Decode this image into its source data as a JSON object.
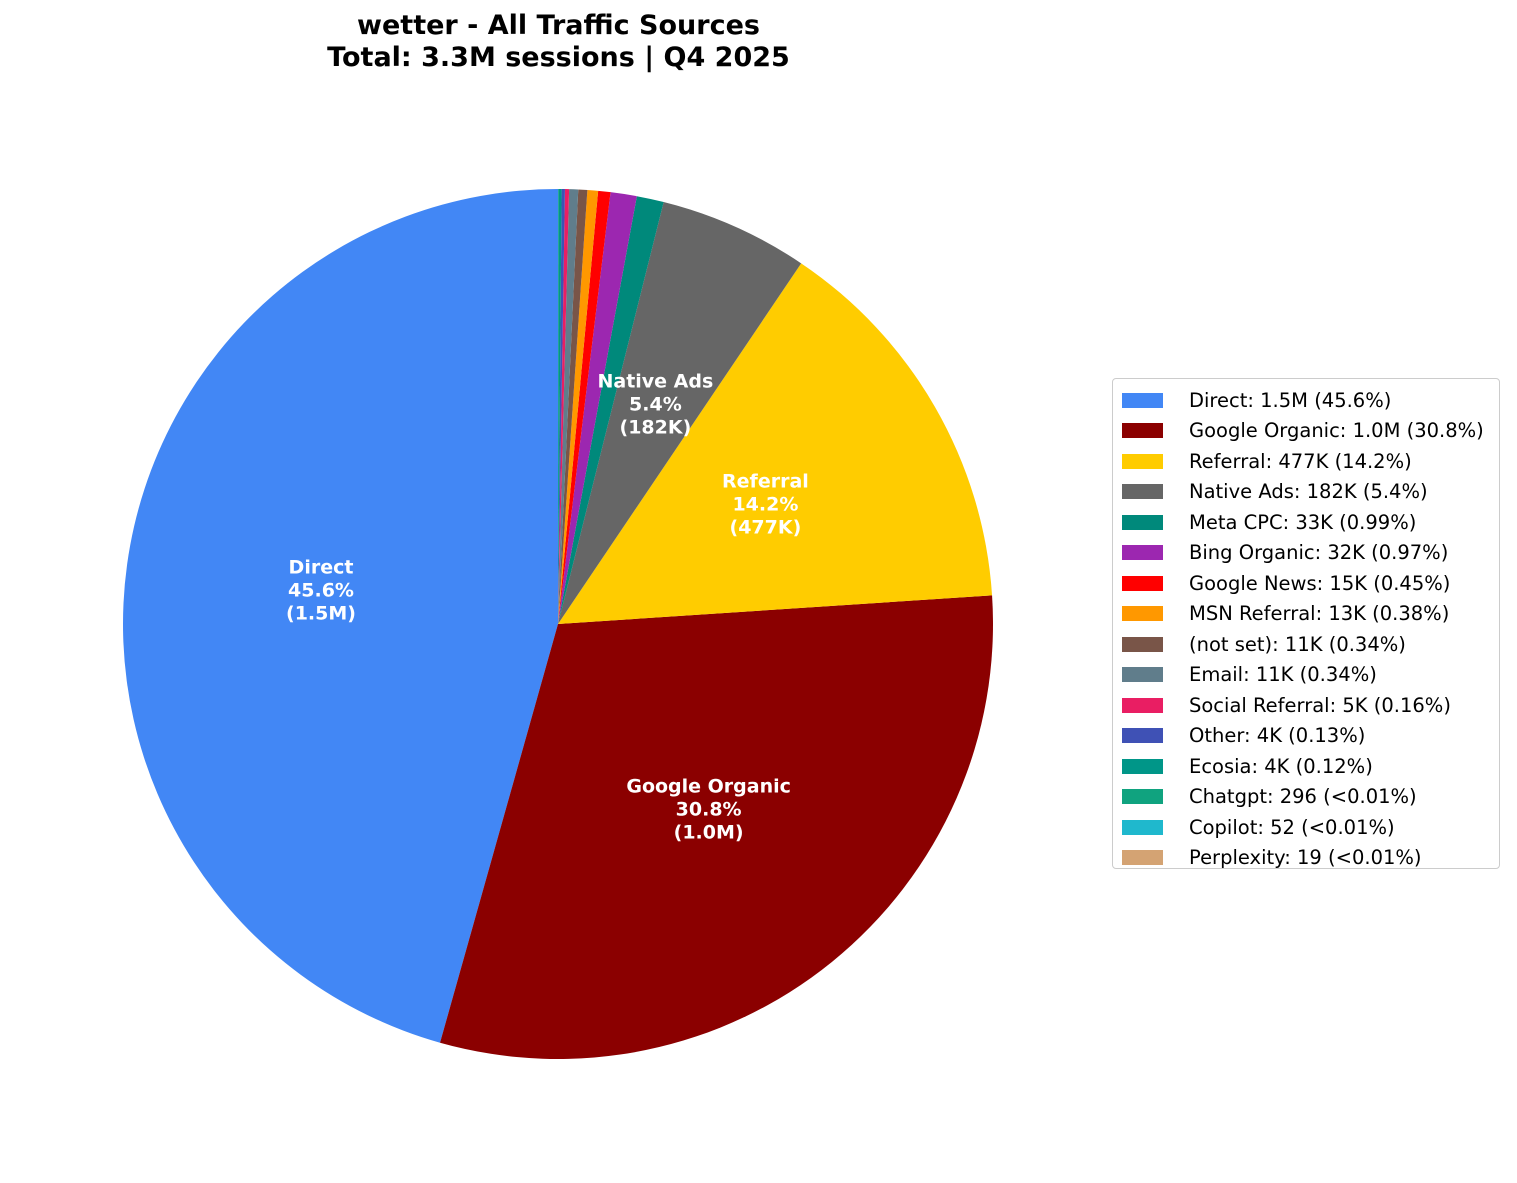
{
  "title": {
    "line1": "wetter - All Traffic Sources",
    "line2": "Total: 3.3M sessions | Q4 2025"
  },
  "chart_data": {
    "type": "pie",
    "title": "wetter - All Traffic Sources\nTotal: 3.3M sessions | Q4 2025",
    "total_sessions": "3.3M",
    "legend_position": "right",
    "slices": [
      {
        "label": "Direct",
        "value": 1500000,
        "value_label": "1.5M",
        "percent": 45.6,
        "pct_label": "45.6%",
        "color": "#4287f5",
        "legend": "Direct: 1.5M (45.6%)",
        "show_label": true
      },
      {
        "label": "Google Organic",
        "value": 1000000,
        "value_label": "1.0M",
        "percent": 30.8,
        "pct_label": "30.8%",
        "color": "#8b0000",
        "legend": "Google Organic: 1.0M (30.8%)",
        "show_label": true
      },
      {
        "label": "Referral",
        "value": 477000,
        "value_label": "477K",
        "percent": 14.2,
        "pct_label": "14.2%",
        "color": "#ffcc00",
        "legend": "Referral: 477K (14.2%)",
        "show_label": true
      },
      {
        "label": "Native Ads",
        "value": 182000,
        "value_label": "182K",
        "percent": 5.4,
        "pct_label": "5.4%",
        "color": "#666666",
        "legend": "Native Ads: 182K (5.4%)",
        "show_label": true
      },
      {
        "label": "Meta CPC",
        "value": 33000,
        "value_label": "33K",
        "percent": 0.99,
        "pct_label": "0.99%",
        "color": "#00897b",
        "legend": "Meta CPC: 33K (0.99%)",
        "show_label": false
      },
      {
        "label": "Bing Organic",
        "value": 32000,
        "value_label": "32K",
        "percent": 0.97,
        "pct_label": "0.97%",
        "color": "#9c27b0",
        "legend": "Bing Organic: 32K (0.97%)",
        "show_label": false
      },
      {
        "label": "Google News",
        "value": 15000,
        "value_label": "15K",
        "percent": 0.45,
        "pct_label": "0.45%",
        "color": "#ff0000",
        "legend": "Google News: 15K (0.45%)",
        "show_label": false
      },
      {
        "label": "MSN Referral",
        "value": 13000,
        "value_label": "13K",
        "percent": 0.38,
        "pct_label": "0.38%",
        "color": "#ff9800",
        "legend": "MSN Referral: 13K (0.38%)",
        "show_label": false
      },
      {
        "label": "(not set)",
        "value": 11000,
        "value_label": "11K",
        "percent": 0.34,
        "pct_label": "0.34%",
        "color": "#795548",
        "legend": "(not set): 11K (0.34%)",
        "show_label": false
      },
      {
        "label": "Email",
        "value": 11000,
        "value_label": "11K",
        "percent": 0.34,
        "pct_label": "0.34%",
        "color": "#607d8b",
        "legend": "Email: 11K (0.34%)",
        "show_label": false
      },
      {
        "label": "Social Referral",
        "value": 5000,
        "value_label": "5K",
        "percent": 0.16,
        "pct_label": "0.16%",
        "color": "#e91e63",
        "legend": "Social Referral: 5K (0.16%)",
        "show_label": false
      },
      {
        "label": "Other",
        "value": 4000,
        "value_label": "4K",
        "percent": 0.13,
        "pct_label": "0.13%",
        "color": "#3f51b5",
        "legend": "Other: 4K (0.13%)",
        "show_label": false
      },
      {
        "label": "Ecosia",
        "value": 4000,
        "value_label": "4K",
        "percent": 0.12,
        "pct_label": "0.12%",
        "color": "#009688",
        "legend": "Ecosia: 4K (0.12%)",
        "show_label": false
      },
      {
        "label": "Chatgpt",
        "value": 296,
        "value_label": "296",
        "percent": 0.009,
        "pct_label": "<0.01%",
        "color": "#10a37f",
        "legend": "Chatgpt: 296 (<0.01%)",
        "show_label": false
      },
      {
        "label": "Copilot",
        "value": 52,
        "value_label": "52",
        "percent": 0.0016,
        "pct_label": "<0.01%",
        "color": "#1fb8cd",
        "legend": "Copilot: 52 (<0.01%)",
        "show_label": false
      },
      {
        "label": "Perplexity",
        "value": 19,
        "value_label": "19",
        "percent": 0.0006,
        "pct_label": "<0.01%",
        "color": "#d4a373",
        "legend": "Perplexity: 19 (<0.01%)",
        "show_label": false
      }
    ]
  }
}
